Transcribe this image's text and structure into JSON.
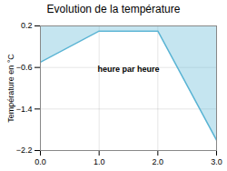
{
  "chart_data": {
    "type": "area",
    "title": "Evolution de la température",
    "xlabel": "heure par heure",
    "ylabel": "Température en °C",
    "x": [
      0,
      1,
      2,
      3
    ],
    "values": [
      -0.5,
      0.1,
      0.1,
      -2.0
    ],
    "color": "#5ab4d4",
    "xlim": [
      0,
      3
    ],
    "ylim": [
      -2.2,
      0.2
    ],
    "xticks": [
      0,
      1,
      2,
      3
    ],
    "yticks": [
      0.2,
      -0.6,
      -1.4,
      -2.2
    ],
    "grid": true
  }
}
